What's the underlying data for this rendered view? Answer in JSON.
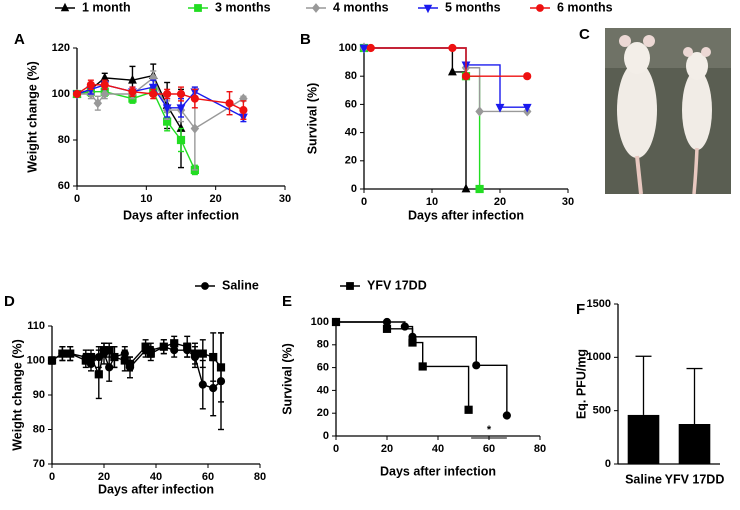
{
  "chart_data": [
    {
      "type": "line",
      "label": "A",
      "xlabel": "Days after infection",
      "ylabel": "Weight change (%)",
      "xlim": [
        0,
        30
      ],
      "xticks": [
        0,
        10,
        20,
        30
      ],
      "ylim": [
        60,
        120
      ],
      "yticks": [
        60,
        80,
        100,
        120
      ],
      "legend": true,
      "series": [
        {
          "name": "1 month",
          "color": "#000000",
          "marker": "triangle",
          "x": [
            0,
            2,
            4,
            8,
            11,
            13,
            15
          ],
          "values": [
            100,
            102,
            107,
            106,
            108,
            95,
            85
          ],
          "errors": [
            1,
            2,
            2,
            6,
            5,
            10,
            17
          ]
        },
        {
          "name": "3 months",
          "color": "#22dd22",
          "marker": "square",
          "x": [
            0,
            2,
            4,
            8,
            11,
            13,
            15,
            17
          ],
          "values": [
            100,
            101,
            101,
            98,
            101,
            88,
            80,
            67
          ],
          "errors": [
            1,
            2,
            2,
            2,
            2,
            4,
            5,
            2
          ]
        },
        {
          "name": "4 months",
          "color": "#999999",
          "marker": "diamond",
          "x": [
            0,
            2,
            3,
            4,
            8,
            11,
            13,
            15,
            17,
            24
          ],
          "values": [
            100,
            100,
            96,
            100,
            100,
            107,
            93,
            93,
            85,
            98
          ],
          "errors": [
            1,
            2,
            3,
            2,
            2,
            3,
            4,
            5,
            18,
            1
          ]
        },
        {
          "name": "5 months",
          "color": "#1a1aee",
          "marker": "triangle-down",
          "x": [
            0,
            2,
            4,
            8,
            11,
            13,
            15,
            17,
            24
          ],
          "values": [
            100,
            102,
            104,
            101,
            103,
            94,
            94,
            101,
            90
          ],
          "errors": [
            1,
            2,
            2,
            2,
            3,
            4,
            4,
            2,
            2
          ]
        },
        {
          "name": "6 months",
          "color": "#ee1111",
          "marker": "circle",
          "x": [
            0,
            2,
            4,
            8,
            11,
            13,
            15,
            17,
            22,
            24
          ],
          "values": [
            100,
            104,
            104,
            101,
            100,
            100,
            100,
            98,
            96,
            93
          ],
          "errors": [
            1,
            2,
            2,
            2,
            2,
            2,
            3,
            4,
            5,
            4
          ]
        }
      ]
    },
    {
      "type": "survival",
      "label": "B",
      "xlabel": "Days after infection",
      "ylabel": "Survival (%)",
      "xlim": [
        0,
        30
      ],
      "xticks": [
        0,
        10,
        20,
        30
      ],
      "ylim": [
        0,
        100
      ],
      "yticks": [
        0,
        20,
        40,
        60,
        80,
        100
      ],
      "series": [
        {
          "color": "#000000",
          "marker": "triangle",
          "x": [
            0,
            13,
            15
          ],
          "values": [
            100,
            83,
            0
          ]
        },
        {
          "color": "#22dd22",
          "marker": "square",
          "x": [
            0,
            15,
            17
          ],
          "values": [
            100,
            80,
            0
          ]
        },
        {
          "color": "#999999",
          "marker": "diamond",
          "x": [
            0,
            15,
            17,
            24
          ],
          "values": [
            100,
            86,
            55,
            55
          ]
        },
        {
          "color": "#1a1aee",
          "marker": "triangle-down",
          "x": [
            0,
            15,
            20,
            24
          ],
          "values": [
            100,
            88,
            58,
            58
          ]
        },
        {
          "color": "#ee1111",
          "marker": "circle",
          "x": [
            1,
            13,
            15,
            24
          ],
          "values": [
            100,
            100,
            80,
            80
          ]
        }
      ]
    },
    {
      "type": "line",
      "label": "D",
      "xlabel": "Days after infection",
      "ylabel": "Weight change (%)",
      "xlim": [
        0,
        80
      ],
      "xticks": [
        0,
        20,
        40,
        60,
        80
      ],
      "ylim": [
        70,
        110
      ],
      "yticks": [
        70,
        80,
        90,
        100,
        110
      ],
      "legend": true,
      "series": [
        {
          "name": "Saline",
          "color": "#000000",
          "marker": "circle",
          "x": [
            0,
            4,
            7,
            13,
            15,
            18,
            20,
            22,
            24,
            28,
            30,
            36,
            38,
            43,
            47,
            52,
            55,
            58,
            62,
            65
          ],
          "values": [
            100,
            102,
            102,
            101,
            99,
            101,
            102,
            98,
            101,
            102,
            98,
            103,
            103,
            104,
            103,
            103,
            101,
            93,
            92,
            94
          ],
          "errors": [
            1,
            2,
            2,
            2,
            2,
            3,
            3,
            4,
            3,
            2,
            3,
            2,
            2,
            2,
            2,
            2,
            3,
            7,
            8,
            14
          ]
        },
        {
          "name": "YFV 17DD",
          "color": "#000000",
          "marker": "square",
          "x": [
            0,
            4,
            7,
            13,
            15,
            18,
            20,
            22,
            24,
            28,
            30,
            36,
            38,
            43,
            47,
            52,
            55,
            58,
            62,
            65
          ],
          "values": [
            100,
            102,
            102,
            100,
            101,
            96,
            103,
            103,
            101,
            100,
            99,
            104,
            102,
            104,
            105,
            104,
            102,
            102,
            101,
            98
          ],
          "errors": [
            1,
            2,
            2,
            2,
            2,
            7,
            2,
            2,
            3,
            3,
            2,
            2,
            2,
            2,
            2,
            3,
            3,
            4,
            7,
            10
          ]
        }
      ]
    },
    {
      "type": "survival",
      "label": "E",
      "xlabel": "Days after infection",
      "ylabel": "Survival (%)",
      "xlim": [
        0,
        80
      ],
      "xticks": [
        0,
        20,
        40,
        60,
        80
      ],
      "ylim": [
        0,
        100
      ],
      "yticks": [
        0,
        20,
        40,
        60,
        80,
        100
      ],
      "annotations": [
        "*"
      ],
      "series": [
        {
          "color": "#000000",
          "marker": "circle",
          "x": [
            0,
            20,
            27,
            30,
            55,
            67
          ],
          "values": [
            100,
            100,
            96,
            87,
            62,
            18
          ]
        },
        {
          "color": "#000000",
          "marker": "square",
          "x": [
            0,
            20,
            30,
            34,
            52
          ],
          "values": [
            100,
            94,
            82,
            61,
            23
          ]
        }
      ]
    },
    {
      "type": "bar",
      "label": "F",
      "ylabel": "Eq. PFU/mg",
      "categories": [
        "Saline",
        "YFV 17DD"
      ],
      "values": [
        460,
        375
      ],
      "errors": [
        550,
        520
      ],
      "color": "#000000",
      "ylim": [
        0,
        1500
      ],
      "yticks": [
        0,
        500,
        1000,
        1500
      ]
    }
  ],
  "image": {
    "label": "C"
  }
}
